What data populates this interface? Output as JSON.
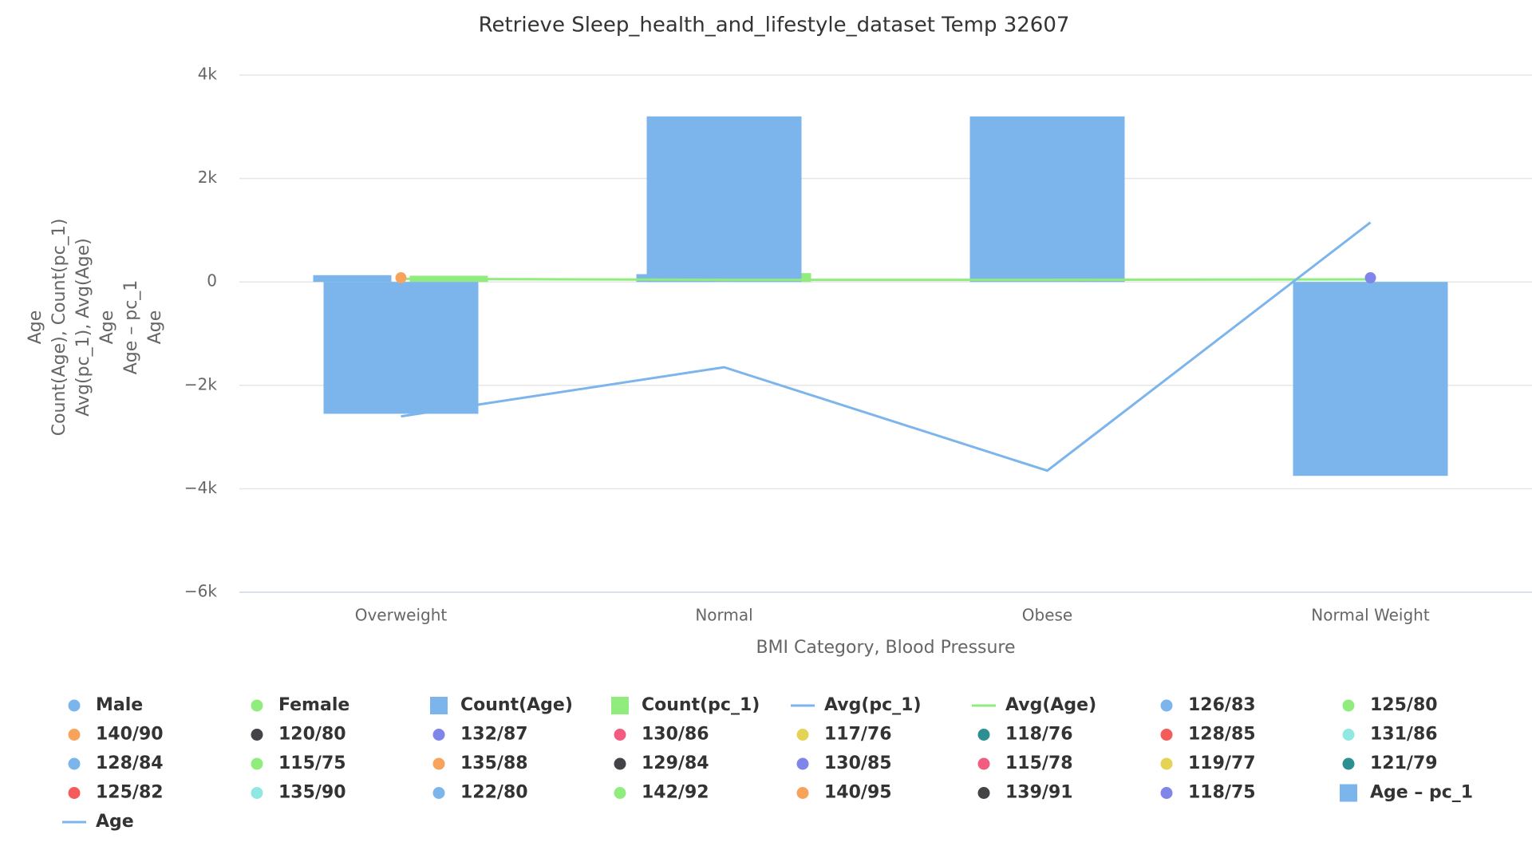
{
  "chart_data": {
    "type": "combo",
    "title": "Retrieve Sleep_health_and_lifestyle_dataset Temp 32607",
    "x_axis_label": "BMI Category, Blood Pressure",
    "y_axis_label": [
      "Age",
      "Count(Age), Count(pc_1)",
      "Avg(pc_1), Avg(Age)",
      "Age",
      "Age – pc_1",
      "Age"
    ],
    "categories": [
      "Overweight",
      "Normal",
      "Obese",
      "Normal Weight"
    ],
    "ylim": [
      -6000,
      4000
    ],
    "yticks": [
      {
        "value": -6000,
        "label": "−6k"
      },
      {
        "value": -4000,
        "label": "−4k"
      },
      {
        "value": -2000,
        "label": "−2k"
      },
      0,
      {
        "value": 2000,
        "label": "2k"
      },
      {
        "value": 4000,
        "label": "4k"
      }
    ],
    "grid": true,
    "series": [
      {
        "name": "Male",
        "color": "#7cb5ec",
        "symbol": "circle"
      },
      {
        "name": "Female",
        "color": "#90ed7d",
        "symbol": "circle"
      },
      {
        "name": "Count(Age)",
        "color": "#7cb5ec",
        "symbol": "square",
        "kind": "bar-left",
        "values": [
          130,
          150,
          null,
          null
        ]
      },
      {
        "name": "Count(pc_1)",
        "color": "#90ed7d",
        "symbol": "square",
        "kind": "bar-right",
        "values": [
          120,
          170,
          null,
          null
        ]
      },
      {
        "name": "Avg(pc_1)",
        "color": "#7cb5ec",
        "symbol": "line"
      },
      {
        "name": "Avg(Age)",
        "color": "#90ed7d",
        "symbol": "line",
        "kind": "line",
        "values": [
          60,
          40,
          40,
          50
        ]
      },
      {
        "name": "126/83",
        "color": "#7cb5ec",
        "symbol": "circle"
      },
      {
        "name": "125/80",
        "color": "#90ed7d",
        "symbol": "circle"
      },
      {
        "name": "140/90",
        "color": "#f7a35c",
        "symbol": "circle",
        "kind": "scatter",
        "values": [
          80,
          null,
          null,
          null
        ]
      },
      {
        "name": "120/80",
        "color": "#434348",
        "symbol": "circle"
      },
      {
        "name": "132/87",
        "color": "#8085e9",
        "symbol": "circle"
      },
      {
        "name": "130/86",
        "color": "#f15c80",
        "symbol": "circle"
      },
      {
        "name": "117/76",
        "color": "#e4d354",
        "symbol": "circle"
      },
      {
        "name": "118/76",
        "color": "#2b908f",
        "symbol": "circle"
      },
      {
        "name": "128/85",
        "color": "#f45b5b",
        "symbol": "circle"
      },
      {
        "name": "131/86",
        "color": "#91e8e1",
        "symbol": "circle"
      },
      {
        "name": "128/84",
        "color": "#7cb5ec",
        "symbol": "circle"
      },
      {
        "name": "115/75",
        "color": "#90ed7d",
        "symbol": "circle"
      },
      {
        "name": "135/88",
        "color": "#f7a35c",
        "symbol": "circle"
      },
      {
        "name": "129/84",
        "color": "#434348",
        "symbol": "circle"
      },
      {
        "name": "130/85",
        "color": "#8085e9",
        "symbol": "circle"
      },
      {
        "name": "115/78",
        "color": "#f15c80",
        "symbol": "circle"
      },
      {
        "name": "119/77",
        "color": "#e4d354",
        "symbol": "circle"
      },
      {
        "name": "121/79",
        "color": "#2b908f",
        "symbol": "circle"
      },
      {
        "name": "125/82",
        "color": "#f45b5b",
        "symbol": "circle"
      },
      {
        "name": "135/90",
        "color": "#91e8e1",
        "symbol": "circle"
      },
      {
        "name": "122/80",
        "color": "#7cb5ec",
        "symbol": "circle"
      },
      {
        "name": "142/92",
        "color": "#90ed7d",
        "symbol": "circle"
      },
      {
        "name": "140/95",
        "color": "#f7a35c",
        "symbol": "circle"
      },
      {
        "name": "139/91",
        "color": "#434348",
        "symbol": "circle"
      },
      {
        "name": "118/75",
        "color": "#8085e9",
        "symbol": "circle",
        "kind": "scatter",
        "values": [
          null,
          null,
          null,
          80
        ]
      },
      {
        "name": "Age – pc_1",
        "color": "#7cb5ec",
        "symbol": "square",
        "kind": "bar",
        "values": [
          -2550,
          3200,
          3200,
          -3750
        ]
      },
      {
        "name": "Age",
        "color": "#7cb5ec",
        "symbol": "line",
        "kind": "line",
        "values": [
          -2600,
          -1650,
          -3650,
          1150
        ]
      }
    ]
  }
}
